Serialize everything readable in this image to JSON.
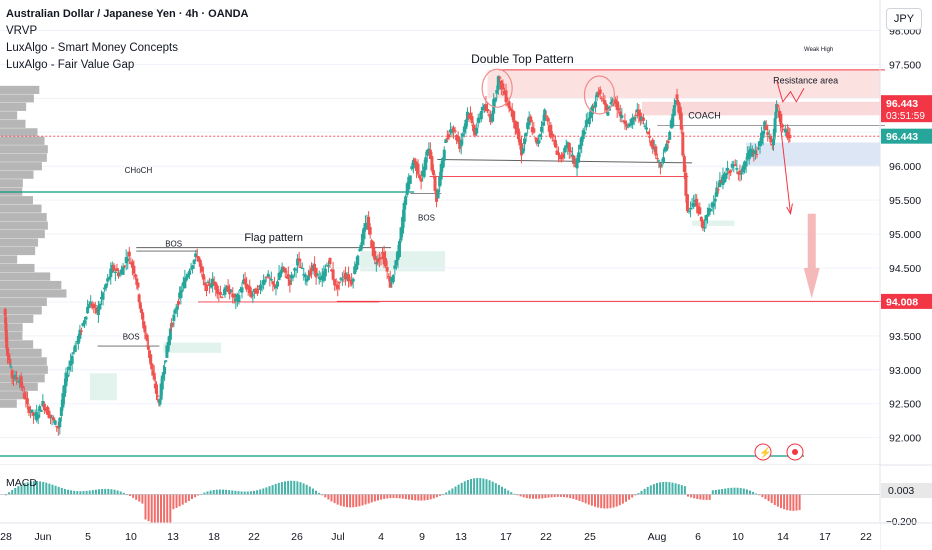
{
  "legend": {
    "symbol": "Australian Dollar / Japanese Yen · 4h · OANDA",
    "indicators": [
      "VRVP",
      "LuxAlgo - Smart Money Concepts",
      "LuxAlgo - Fair Value Gap"
    ]
  },
  "currency_button": "JPY",
  "price_tags": {
    "current": "96.443",
    "countdown": "03:51:59",
    "secondary": "96.443",
    "target": "94.008",
    "macd_value": "0.003",
    "macd_low": "−0.200"
  },
  "colors": {
    "bull": "#26a69a",
    "bear": "#ef5350",
    "choch": "#089981",
    "target_line": "#f23645",
    "volume_profile": "#9e9e9e"
  },
  "chart_data": {
    "type": "candlestick",
    "title": "Australian Dollar / Japanese Yen · 4h · OANDA",
    "ylim": [
      91.7,
      98.45
    ],
    "y_ticks": [
      98.0,
      97.5,
      97.0,
      96.5,
      96.0,
      95.5,
      95.0,
      94.5,
      94.0,
      93.5,
      93.0,
      92.5,
      92.0
    ],
    "y_tick_labels": [
      "98.000",
      "97.500",
      "97.000",
      "96.500",
      "96.000",
      "95.500",
      "95.000",
      "94.500",
      "94.000",
      "93.500",
      "93.000",
      "92.500",
      "92.000"
    ],
    "x_tick_labels": [
      "28",
      "Jun",
      "5",
      "10",
      "13",
      "18",
      "22",
      "26",
      "Jul",
      "4",
      "9",
      "13",
      "17",
      "22",
      "25",
      "Aug",
      "6",
      "10",
      "14",
      "17",
      "22"
    ],
    "price_path": [
      [
        0,
        93.9
      ],
      [
        0.05,
        93.35
      ],
      [
        0.2,
        92.9
      ],
      [
        0.4,
        92.85
      ],
      [
        0.6,
        92.45
      ],
      [
        0.8,
        92.3
      ],
      [
        1.0,
        92.5
      ],
      [
        1.2,
        92.3
      ],
      [
        1.4,
        92.15
      ],
      [
        1.6,
        92.9
      ],
      [
        1.8,
        93.3
      ],
      [
        2.0,
        93.6
      ],
      [
        2.2,
        94.0
      ],
      [
        2.4,
        93.85
      ],
      [
        2.6,
        94.2
      ],
      [
        2.8,
        94.5
      ],
      [
        3.0,
        94.4
      ],
      [
        3.2,
        94.7
      ],
      [
        3.4,
        94.4
      ],
      [
        3.55,
        93.8
      ],
      [
        3.7,
        93.4
      ],
      [
        3.85,
        92.9
      ],
      [
        4.0,
        92.5
      ],
      [
        4.15,
        93.1
      ],
      [
        4.3,
        93.6
      ],
      [
        4.45,
        93.9
      ],
      [
        4.6,
        94.2
      ],
      [
        4.8,
        94.5
      ],
      [
        5.0,
        94.7
      ],
      [
        5.2,
        94.2
      ],
      [
        5.4,
        94.3
      ],
      [
        5.6,
        94.1
      ],
      [
        5.8,
        94.2
      ],
      [
        6.0,
        94.0
      ],
      [
        6.2,
        94.3
      ],
      [
        6.4,
        94.1
      ],
      [
        6.6,
        94.2
      ],
      [
        6.8,
        94.4
      ],
      [
        7.0,
        94.2
      ],
      [
        7.2,
        94.5
      ],
      [
        7.4,
        94.3
      ],
      [
        7.6,
        94.6
      ],
      [
        7.8,
        94.35
      ],
      [
        8.0,
        94.5
      ],
      [
        8.2,
        94.3
      ],
      [
        8.4,
        94.6
      ],
      [
        8.6,
        94.2
      ],
      [
        8.8,
        94.4
      ],
      [
        9.0,
        94.3
      ],
      [
        9.2,
        94.8
      ],
      [
        9.4,
        95.2
      ],
      [
        9.6,
        94.6
      ],
      [
        9.8,
        94.7
      ],
      [
        10.0,
        94.25
      ],
      [
        10.2,
        94.7
      ],
      [
        10.4,
        95.6
      ],
      [
        10.6,
        96.1
      ],
      [
        10.8,
        95.8
      ],
      [
        11.0,
        96.3
      ],
      [
        11.2,
        95.5
      ],
      [
        11.4,
        96.3
      ],
      [
        11.6,
        96.6
      ],
      [
        11.8,
        96.3
      ],
      [
        12.0,
        96.8
      ],
      [
        12.2,
        96.5
      ],
      [
        12.4,
        96.9
      ],
      [
        12.6,
        96.7
      ],
      [
        12.8,
        97.3
      ],
      [
        13.0,
        97.0
      ],
      [
        13.2,
        96.7
      ],
      [
        13.4,
        96.2
      ],
      [
        13.6,
        96.7
      ],
      [
        13.8,
        96.3
      ],
      [
        14.0,
        96.8
      ],
      [
        14.2,
        96.4
      ],
      [
        14.4,
        96.1
      ],
      [
        14.6,
        96.3
      ],
      [
        14.8,
        96.0
      ],
      [
        15.0,
        96.5
      ],
      [
        15.2,
        96.8
      ],
      [
        15.4,
        97.1
      ],
      [
        15.6,
        96.8
      ],
      [
        15.8,
        97.0
      ],
      [
        16.0,
        96.7
      ],
      [
        16.2,
        96.6
      ],
      [
        16.4,
        96.8
      ],
      [
        16.6,
        96.6
      ],
      [
        16.8,
        96.3
      ],
      [
        17.0,
        96.0
      ],
      [
        17.2,
        96.4
      ],
      [
        17.4,
        97.0
      ],
      [
        17.5,
        96.8
      ],
      [
        17.7,
        95.3
      ],
      [
        17.9,
        95.5
      ],
      [
        18.1,
        95.1
      ],
      [
        18.3,
        95.4
      ],
      [
        18.5,
        95.7
      ],
      [
        18.7,
        95.9
      ],
      [
        18.9,
        96.0
      ],
      [
        19.1,
        95.9
      ],
      [
        19.3,
        96.2
      ],
      [
        19.5,
        96.2
      ],
      [
        19.7,
        96.6
      ],
      [
        19.9,
        96.3
      ],
      [
        20.0,
        96.9
      ],
      [
        20.2,
        96.5
      ],
      [
        20.35,
        96.443
      ]
    ],
    "macd_histogram_ylim": [
      -0.2,
      0.25
    ],
    "macd_last": 0.003,
    "annotations": [
      "Double Top Pattern",
      "Resistance area",
      "Weak High",
      "COACH",
      "BOS",
      "Flag pattern",
      "BOS",
      "BOS",
      "CHoCH",
      "MACD"
    ],
    "levels": {
      "target": 94.008,
      "current": 96.443,
      "choch": 95.62,
      "resistance_top": 97.42,
      "resistance_bottom": 97.0
    }
  }
}
